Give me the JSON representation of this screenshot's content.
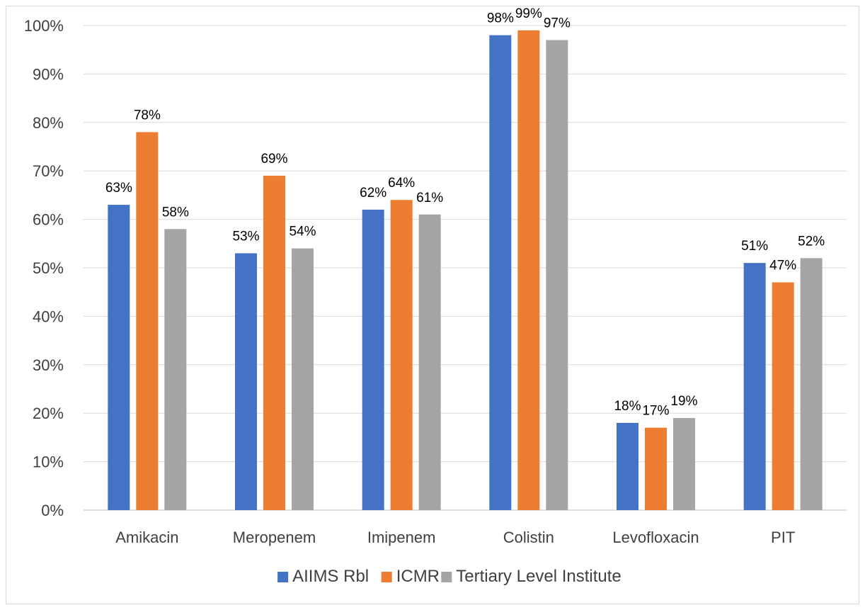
{
  "chart_data": {
    "type": "bar",
    "categories": [
      "Amikacin",
      "Meropenem",
      "Imipenem",
      "Colistin",
      "Levofloxacin",
      "PIT"
    ],
    "series": [
      {
        "name": "AIIMS Rbl",
        "color": "#4472C4",
        "values": [
          63,
          53,
          62,
          98,
          18,
          51
        ]
      },
      {
        "name": "ICMR",
        "color": "#ED7D31",
        "values": [
          78,
          69,
          64,
          99,
          17,
          47
        ]
      },
      {
        "name": "Tertiary Level Institute",
        "color": "#A5A5A5",
        "values": [
          58,
          54,
          61,
          97,
          19,
          52
        ]
      }
    ],
    "ylim": [
      0,
      100
    ],
    "yticks": [
      0,
      10,
      20,
      30,
      40,
      50,
      60,
      70,
      80,
      90,
      100
    ],
    "ytick_labels": [
      "0%",
      "10%",
      "20%",
      "30%",
      "40%",
      "50%",
      "60%",
      "70%",
      "80%",
      "90%",
      "100%"
    ],
    "value_suffix": "%",
    "grid": true,
    "legend_position": "bottom"
  }
}
